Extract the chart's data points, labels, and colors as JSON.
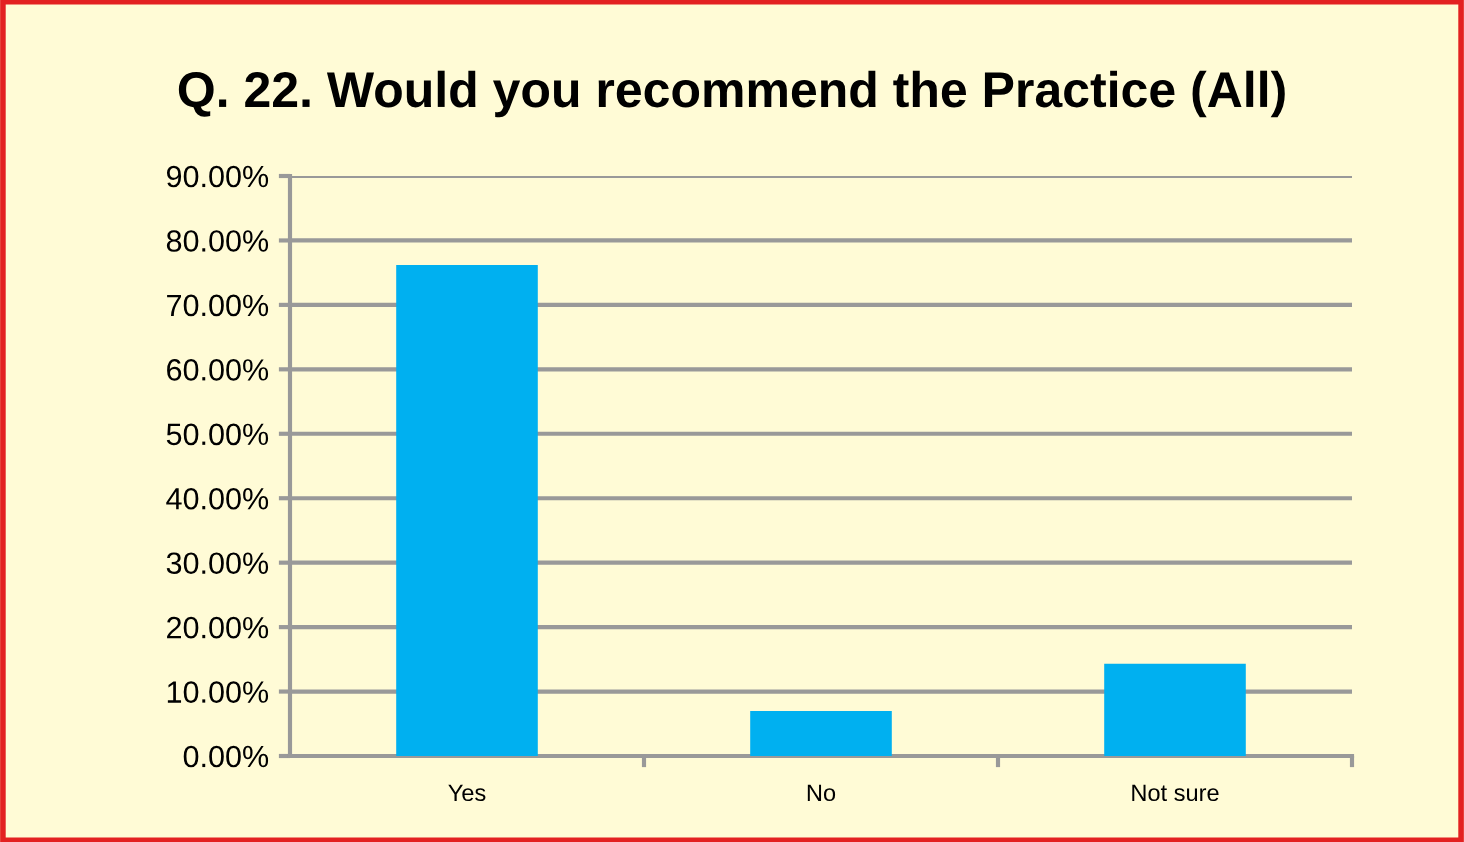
{
  "chart_data": {
    "type": "bar",
    "title": "Q. 22. Would you recommend the Practice (All)",
    "categories": [
      "Yes",
      "No",
      "Not sure"
    ],
    "values": [
      76.2,
      7.0,
      14.3
    ],
    "color": "#00b0f0",
    "ylim": [
      0,
      90
    ],
    "yticks": [
      {
        "value": 0,
        "label": "0.00%"
      },
      {
        "value": 10,
        "label": "10.00%"
      },
      {
        "value": 20,
        "label": "20.00%"
      },
      {
        "value": 30,
        "label": "30.00%"
      },
      {
        "value": 40,
        "label": "40.00%"
      },
      {
        "value": 50,
        "label": "50.00%"
      },
      {
        "value": 60,
        "label": "60.00%"
      },
      {
        "value": 70,
        "label": "70.00%"
      },
      {
        "value": 80,
        "label": "80.00%"
      },
      {
        "value": 90,
        "label": "90.00%"
      }
    ],
    "grid": "y",
    "legend": false
  }
}
